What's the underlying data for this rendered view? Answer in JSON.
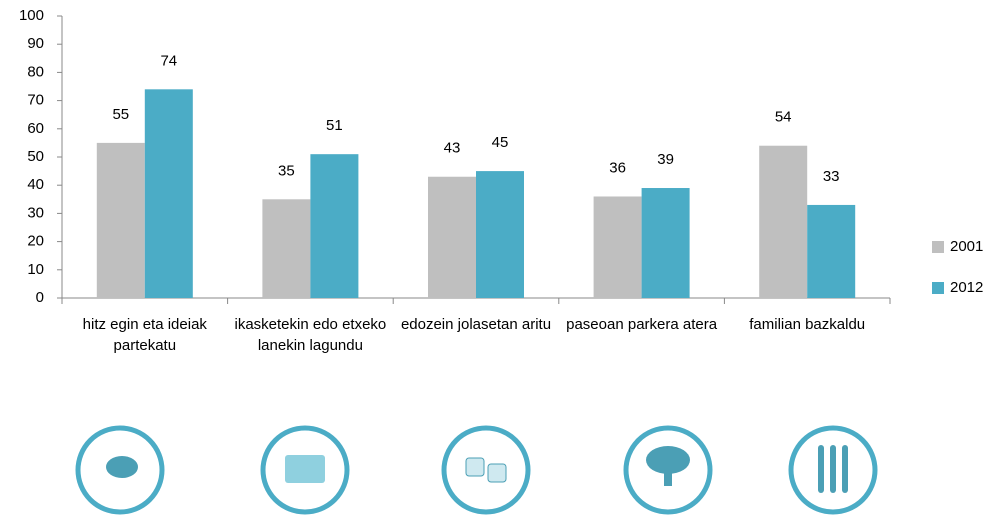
{
  "chart_data": {
    "type": "bar",
    "categories": [
      "hitz egin eta ideiak partekatu",
      "ikasketekin edo etxeko lanekin lagundu",
      "edozein jolasetan aritu",
      "paseoan parkera atera",
      "familian bazkaldu"
    ],
    "series": [
      {
        "name": "2001",
        "color": "#bfbfbf",
        "values": [
          55,
          35,
          43,
          36,
          54
        ]
      },
      {
        "name": "2012",
        "color": "#4bacc6",
        "values": [
          74,
          51,
          45,
          39,
          33
        ]
      }
    ],
    "ylim": [
      0,
      100
    ],
    "yticks": [
      0,
      10,
      20,
      30,
      40,
      50,
      60,
      70,
      80,
      90,
      100
    ],
    "grid": false,
    "legend": "right"
  }
}
